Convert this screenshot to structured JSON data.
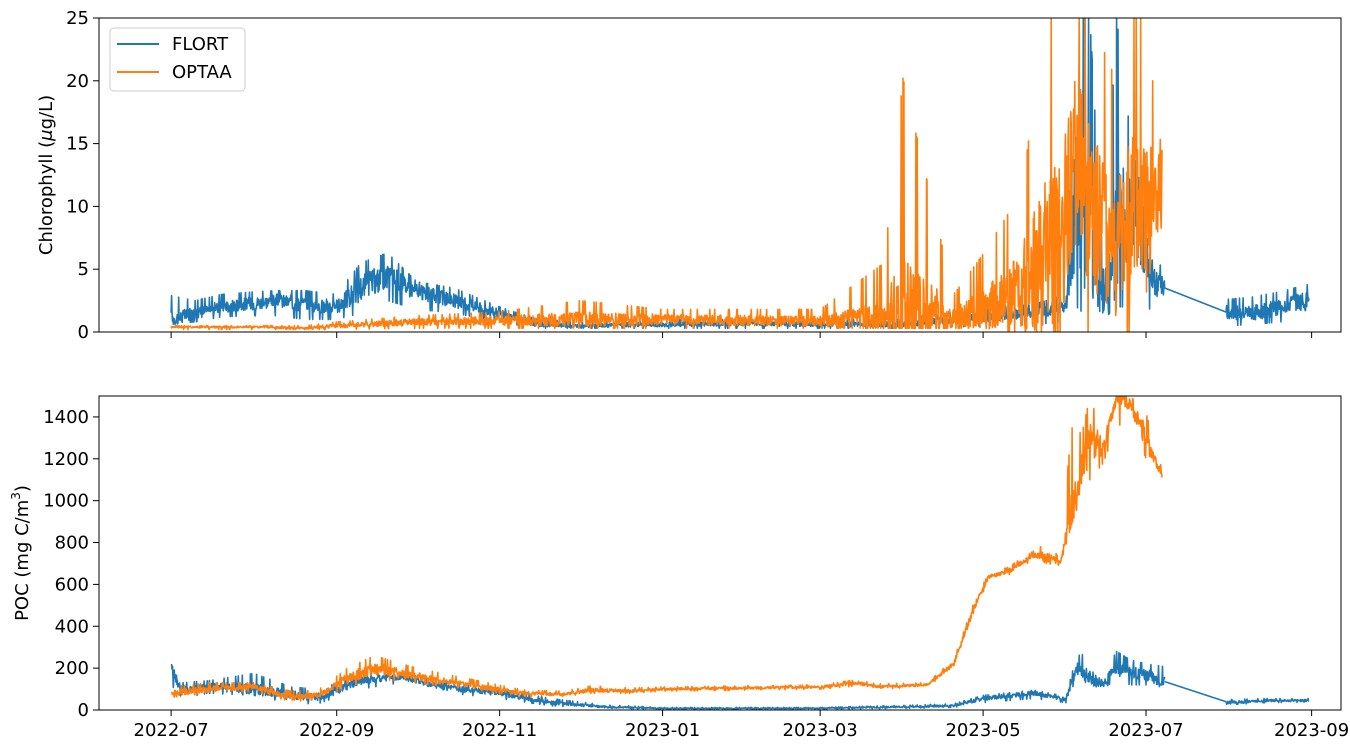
{
  "x_ticks": [
    "2022-07-01",
    "2022-09-01",
    "2022-11-01",
    "2023-01-01",
    "2023-03-01",
    "2023-05-01",
    "2023-07-01",
    "2023-09-01"
  ],
  "x_tick_labels": [
    "2022-07",
    "2022-09",
    "2022-11",
    "2023-01",
    "2023-03",
    "2023-05",
    "2023-07",
    "2023-09"
  ],
  "colors": {
    "FLORT": "#1f77b4",
    "OPTAA": "#ff7f0e"
  },
  "chart_data": [
    {
      "type": "line",
      "ylabel_prefix": "Chlorophyll (",
      "ylabel_mu": "μ",
      "ylabel_suffix": "g/L)",
      "ylim": [
        0,
        25
      ],
      "yticks": [
        0,
        5,
        10,
        15,
        20,
        25
      ],
      "xlim": [
        "2022-06-04",
        "2023-09-12"
      ],
      "legend": {
        "placement": "top-left",
        "entries": [
          "FLORT",
          "OPTAA"
        ]
      },
      "series": [
        {
          "name": "FLORT",
          "x": [
            "2022-07-01",
            "2022-07-10",
            "2022-07-20",
            "2022-08-01",
            "2022-08-10",
            "2022-08-20",
            "2022-09-01",
            "2022-09-10",
            "2022-09-20",
            "2022-10-01",
            "2022-10-15",
            "2022-11-01",
            "2022-11-15",
            "2022-12-01",
            "2023-01-01",
            "2023-02-01",
            "2023-03-01",
            "2023-04-01",
            "2023-04-20",
            "2023-05-05",
            "2023-05-20",
            "2023-06-01",
            "2023-06-05",
            "2023-06-10",
            "2023-06-15",
            "2023-06-20",
            "2023-06-25",
            "2023-07-01",
            "2023-07-05",
            "2023-07-08",
            "2023-08-01",
            "2023-08-10",
            "2023-08-20",
            "2023-08-31"
          ],
          "y": [
            1.0,
            1.5,
            2.0,
            2.3,
            2.5,
            2.2,
            2.0,
            3.5,
            4.5,
            3.2,
            2.5,
            1.5,
            0.6,
            0.5,
            0.6,
            0.7,
            0.6,
            0.6,
            1.0,
            1.2,
            1.6,
            2.0,
            12.0,
            8.0,
            2.0,
            8.0,
            10.0,
            6.0,
            4.0,
            3.5,
            1.5,
            1.5,
            2.0,
            2.5
          ],
          "ymin": [
            0.6,
            0.8,
            1.2,
            1.3,
            1.3,
            1.0,
            1.0,
            1.5,
            2.5,
            1.8,
            1.5,
            0.8,
            0.3,
            0.3,
            0.3,
            0.3,
            0.3,
            0.3,
            0.4,
            0.5,
            0.6,
            0.8,
            2.0,
            1.0,
            1.0,
            2.0,
            2.0,
            2.0,
            1.5,
            1.5,
            0.5,
            0.6,
            0.8,
            1.0
          ],
          "ymax": [
            2.9,
            2.5,
            3.0,
            3.2,
            3.3,
            3.3,
            3.0,
            5.5,
            6.3,
            4.0,
            3.5,
            2.0,
            1.0,
            0.8,
            1.0,
            1.0,
            1.0,
            1.0,
            1.6,
            2.0,
            2.2,
            3.0,
            25.0,
            25.0,
            5.0,
            25.0,
            16.0,
            9.0,
            6.0,
            4.5,
            2.6,
            2.8,
            3.2,
            3.8
          ]
        },
        {
          "name": "OPTAA",
          "x": [
            "2022-07-01",
            "2022-08-01",
            "2022-08-20",
            "2022-09-01",
            "2022-10-01",
            "2022-11-01",
            "2022-12-01",
            "2023-01-01",
            "2023-02-01",
            "2023-03-01",
            "2023-03-25",
            "2023-04-01",
            "2023-04-20",
            "2023-05-01",
            "2023-05-15",
            "2023-05-25",
            "2023-06-01",
            "2023-06-05",
            "2023-06-10",
            "2023-06-20",
            "2023-06-25",
            "2023-07-01",
            "2023-07-05",
            "2023-07-07"
          ],
          "y": [
            0.4,
            0.4,
            0.3,
            0.5,
            0.8,
            0.9,
            1.0,
            1.0,
            0.9,
            0.9,
            1.0,
            1.0,
            1.2,
            1.8,
            3.5,
            6.0,
            9.0,
            14.0,
            10.0,
            6.0,
            9.0,
            9.0,
            10.0,
            11.0
          ],
          "ymin": [
            0.2,
            0.2,
            0.2,
            0.2,
            0.3,
            0.3,
            0.3,
            0.3,
            0.3,
            0.3,
            0.3,
            0.3,
            0.3,
            0.3,
            0.0,
            0.0,
            0.0,
            0.0,
            0.0,
            0.0,
            0.0,
            0.0,
            0.0,
            3.0
          ],
          "ymax": [
            0.5,
            0.5,
            0.5,
            0.8,
            1.3,
            1.6,
            2.5,
            1.8,
            1.8,
            1.8,
            5.5,
            20.2,
            3.0,
            6.2,
            11.0,
            25.0,
            25.0,
            25.0,
            25.0,
            20.0,
            25.0,
            25.0,
            17.0,
            14.5
          ]
        }
      ]
    },
    {
      "type": "line",
      "ylabel_prefix": "POC (mg C/m",
      "ylabel_sup": "3",
      "ylabel_suffix": ")",
      "ylim": [
        0,
        1500
      ],
      "yticks": [
        0,
        200,
        400,
        600,
        800,
        1000,
        1200,
        1400
      ],
      "xlim": [
        "2022-06-04",
        "2023-09-12"
      ],
      "series": [
        {
          "name": "FLORT",
          "x": [
            "2022-07-01",
            "2022-07-05",
            "2022-07-15",
            "2022-08-01",
            "2022-08-15",
            "2022-08-25",
            "2022-09-10",
            "2022-09-25",
            "2022-10-10",
            "2022-11-01",
            "2022-11-20",
            "2022-12-10",
            "2023-01-01",
            "2023-02-01",
            "2023-03-01",
            "2023-04-01",
            "2023-04-20",
            "2023-05-01",
            "2023-05-20",
            "2023-06-01",
            "2023-06-05",
            "2023-06-10",
            "2023-06-15",
            "2023-06-20",
            "2023-06-25",
            "2023-07-01",
            "2023-07-07",
            "2023-08-01",
            "2023-08-15",
            "2023-08-31"
          ],
          "y": [
            200,
            90,
            110,
            100,
            70,
            60,
            140,
            160,
            110,
            80,
            35,
            15,
            8,
            8,
            8,
            15,
            20,
            55,
            80,
            50,
            200,
            150,
            130,
            200,
            180,
            170,
            140,
            35,
            45,
            45
          ],
          "ymin": [
            120,
            60,
            80,
            70,
            30,
            30,
            100,
            130,
            85,
            55,
            20,
            8,
            4,
            4,
            4,
            8,
            12,
            35,
            55,
            35,
            150,
            120,
            100,
            150,
            120,
            120,
            110,
            25,
            35,
            38
          ],
          "ymax": [
            220,
            130,
            140,
            175,
            110,
            100,
            165,
            180,
            135,
            100,
            55,
            25,
            12,
            12,
            12,
            22,
            30,
            70,
            95,
            65,
            260,
            270,
            170,
            280,
            240,
            220,
            210,
            50,
            55,
            55
          ]
        },
        {
          "name": "OPTAA",
          "x": [
            "2022-07-01",
            "2022-07-15",
            "2022-08-01",
            "2022-08-15",
            "2022-08-25",
            "2022-09-05",
            "2022-09-15",
            "2022-10-01",
            "2022-10-20",
            "2022-11-10",
            "2022-11-25",
            "2022-12-05",
            "2022-12-20",
            "2023-01-01",
            "2023-02-01",
            "2023-03-01",
            "2023-03-15",
            "2023-03-22",
            "2023-04-10",
            "2023-04-20",
            "2023-04-28",
            "2023-05-03",
            "2023-05-10",
            "2023-05-20",
            "2023-05-25",
            "2023-05-30",
            "2023-06-03",
            "2023-06-07",
            "2023-06-10",
            "2023-06-15",
            "2023-06-20",
            "2023-06-25",
            "2023-07-01",
            "2023-07-07"
          ],
          "y": [
            80,
            100,
            110,
            60,
            70,
            150,
            200,
            160,
            120,
            80,
            75,
            95,
            90,
            100,
            105,
            110,
            130,
            110,
            120,
            220,
            500,
            635,
            660,
            740,
            730,
            700,
            900,
            1150,
            1300,
            1250,
            1500,
            1460,
            1300,
            1120
          ],
          "ymin": [
            60,
            80,
            90,
            40,
            50,
            110,
            150,
            130,
            100,
            65,
            65,
            80,
            80,
            90,
            95,
            100,
            115,
            100,
            110,
            200,
            470,
            620,
            640,
            720,
            700,
            690,
            880,
            1030,
            1100,
            1180,
            1350,
            1400,
            1200,
            1110
          ],
          "ymax": [
            110,
            130,
            130,
            90,
            95,
            200,
            260,
            200,
            150,
            95,
            90,
            115,
            105,
            110,
            115,
            120,
            145,
            125,
            130,
            240,
            530,
            650,
            680,
            760,
            800,
            720,
            1350,
            1320,
            1500,
            1300,
            1500,
            1500,
            1420,
            1150
          ]
        }
      ]
    }
  ]
}
